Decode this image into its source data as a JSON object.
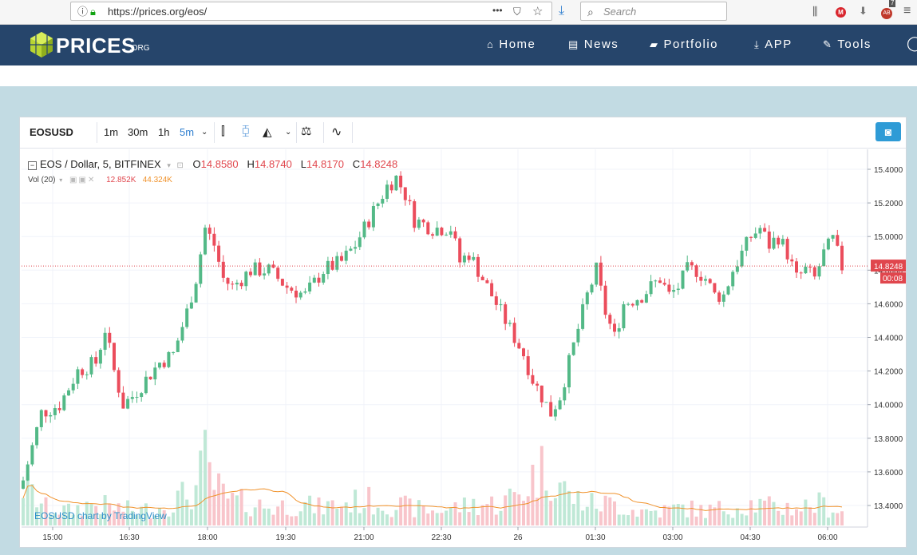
{
  "browser": {
    "url": "https://prices.org/eos/",
    "menu_dots": "•••",
    "search_placeholder": "Search",
    "badge_count": "7",
    "ab_label": "AB"
  },
  "site": {
    "logo_text": "PRICES",
    "logo_suffix": ".ORG",
    "nav": [
      {
        "label": "Home",
        "icon": "home-icon"
      },
      {
        "label": "News",
        "icon": "newspaper-icon"
      },
      {
        "label": "Portfolio",
        "icon": "folder-icon"
      },
      {
        "label": "APP",
        "icon": "download-icon"
      },
      {
        "label": "Tools",
        "icon": "wrench-icon"
      }
    ]
  },
  "chart_toolbar": {
    "symbol": "EOSUSD",
    "intervals": [
      "1m",
      "30m",
      "1h",
      "5m"
    ],
    "active_interval": "5m"
  },
  "legend": {
    "title": "EOS / Dollar, 5, BITFINEX",
    "o_label": "O",
    "o_value": "14.8580",
    "h_label": "H",
    "h_value": "14.8740",
    "l_label": "L",
    "l_value": "14.8170",
    "c_label": "C",
    "c_value": "14.8248",
    "vol_label": "Vol (20)",
    "vol_value": "12.852K",
    "vol_ma": "44.324K"
  },
  "watermark": "EOSUSD chart by TradingView",
  "chart_data": {
    "type": "candlestick",
    "y_axis_ticks": [
      "15.4000",
      "15.2000",
      "15.0000",
      "14.8000",
      "14.6000",
      "14.4000",
      "14.2000",
      "14.0000",
      "13.8000",
      "13.6000",
      "13.4000"
    ],
    "ylim": [
      13.3,
      15.45
    ],
    "x_axis_ticks": [
      "15:00",
      "16:30",
      "18:00",
      "19:30",
      "21:00",
      "22:30",
      "26",
      "01:30",
      "03:00",
      "04:30",
      "06:00"
    ],
    "last_price_label": "14.8248",
    "countdown_label": "00:08",
    "last_price": 14.8248,
    "colors": {
      "up": "#53b987",
      "down": "#eb4d5c",
      "vol_up": "#bfe8d6",
      "vol_down": "#f8c5cb",
      "vol_ma": "#f0922b",
      "price_line": "#e0464d"
    },
    "close_path": [
      [
        0,
        13.55
      ],
      [
        4,
        13.95
      ],
      [
        8,
        14.0
      ],
      [
        12,
        14.2
      ],
      [
        16,
        14.25
      ],
      [
        18,
        14.45
      ],
      [
        20,
        14.2
      ],
      [
        22,
        14.0
      ],
      [
        24,
        14.05
      ],
      [
        27,
        14.15
      ],
      [
        30,
        14.25
      ],
      [
        33,
        14.3
      ],
      [
        36,
        14.55
      ],
      [
        38,
        14.75
      ],
      [
        40,
        15.05
      ],
      [
        42,
        14.95
      ],
      [
        44,
        14.75
      ],
      [
        46,
        14.7
      ],
      [
        50,
        14.8
      ],
      [
        54,
        14.8
      ],
      [
        58,
        14.7
      ],
      [
        62,
        14.65
      ],
      [
        66,
        14.8
      ],
      [
        70,
        14.85
      ],
      [
        73,
        14.95
      ],
      [
        76,
        15.1
      ],
      [
        78,
        15.2
      ],
      [
        80,
        15.3
      ],
      [
        82,
        15.35
      ],
      [
        84,
        15.25
      ],
      [
        86,
        15.1
      ],
      [
        90,
        15.05
      ],
      [
        94,
        15.05
      ],
      [
        96,
        14.85
      ],
      [
        98,
        14.9
      ],
      [
        100,
        14.8
      ],
      [
        102,
        14.7
      ],
      [
        104,
        14.6
      ],
      [
        106,
        14.5
      ],
      [
        108,
        14.4
      ],
      [
        110,
        14.3
      ],
      [
        112,
        14.15
      ],
      [
        114,
        14.05
      ],
      [
        116,
        13.95
      ],
      [
        118,
        14.05
      ],
      [
        120,
        14.25
      ],
      [
        122,
        14.45
      ],
      [
        124,
        14.65
      ],
      [
        126,
        14.8
      ],
      [
        128,
        14.55
      ],
      [
        130,
        14.4
      ],
      [
        132,
        14.6
      ],
      [
        136,
        14.65
      ],
      [
        138,
        14.7
      ],
      [
        140,
        14.75
      ],
      [
        142,
        14.65
      ],
      [
        144,
        14.7
      ],
      [
        146,
        14.8
      ],
      [
        148,
        14.8
      ],
      [
        150,
        14.75
      ],
      [
        152,
        14.65
      ],
      [
        154,
        14.65
      ],
      [
        156,
        14.8
      ],
      [
        158,
        14.9
      ],
      [
        160,
        15.0
      ],
      [
        162,
        15.05
      ],
      [
        164,
        14.95
      ],
      [
        166,
        15.0
      ],
      [
        168,
        14.9
      ],
      [
        170,
        14.75
      ],
      [
        172,
        14.8
      ],
      [
        174,
        14.75
      ],
      [
        176,
        14.9
      ],
      [
        178,
        14.98
      ],
      [
        180,
        14.82
      ]
    ],
    "volume_profile": [
      [
        0,
        0.55
      ],
      [
        5,
        0.25
      ],
      [
        10,
        0.2
      ],
      [
        15,
        0.3
      ],
      [
        20,
        0.25
      ],
      [
        25,
        0.2
      ],
      [
        30,
        0.25
      ],
      [
        35,
        0.4
      ],
      [
        38,
        0.5
      ],
      [
        40,
        0.9
      ],
      [
        42,
        0.55
      ],
      [
        45,
        0.35
      ],
      [
        50,
        0.3
      ],
      [
        55,
        0.25
      ],
      [
        60,
        0.3
      ],
      [
        65,
        0.25
      ],
      [
        70,
        0.3
      ],
      [
        75,
        0.35
      ],
      [
        80,
        0.3
      ],
      [
        85,
        0.25
      ],
      [
        90,
        0.2
      ],
      [
        95,
        0.25
      ],
      [
        100,
        0.3
      ],
      [
        105,
        0.3
      ],
      [
        110,
        0.5
      ],
      [
        113,
        0.75
      ],
      [
        116,
        0.8
      ],
      [
        120,
        0.4
      ],
      [
        125,
        0.3
      ],
      [
        130,
        0.3
      ],
      [
        135,
        0.2
      ],
      [
        140,
        0.2
      ],
      [
        145,
        0.25
      ],
      [
        150,
        0.2
      ],
      [
        155,
        0.25
      ],
      [
        160,
        0.3
      ],
      [
        165,
        0.25
      ],
      [
        170,
        0.25
      ],
      [
        175,
        0.3
      ],
      [
        180,
        0.2
      ]
    ]
  }
}
